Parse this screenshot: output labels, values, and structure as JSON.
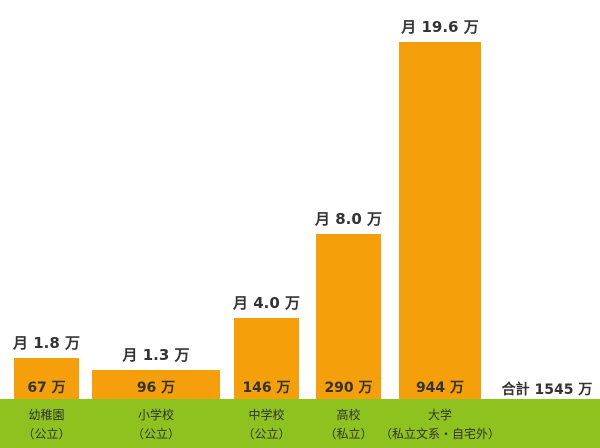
{
  "colors": {
    "bar": "#f5a00a",
    "ground": "#8dc21f",
    "text": "#333333"
  },
  "chart_data": {
    "type": "bar",
    "title": "",
    "xlabel": "",
    "ylabel": "",
    "ylim": [
      0,
      1000
    ],
    "categories": [
      {
        "line1": "幼稚園",
        "line2": "（公立）"
      },
      {
        "line1": "小学校",
        "line2": "（公立）"
      },
      {
        "line1": "中学校",
        "line2": "（公立）"
      },
      {
        "line1": "高校",
        "line2": "（私立）"
      },
      {
        "line1": "大学",
        "line2": "（私立文系・自宅外）"
      }
    ],
    "values": [
      67,
      96,
      146,
      290,
      944
    ],
    "value_labels": [
      "67 万",
      "96 万",
      "146 万",
      "290 万",
      "944 万"
    ],
    "monthly_labels": [
      "月 1.8 万",
      "月 1.3 万",
      "月 4.0 万",
      "月 8.0 万",
      "月 19.6 万"
    ],
    "total_label": "合計 1545 万"
  }
}
